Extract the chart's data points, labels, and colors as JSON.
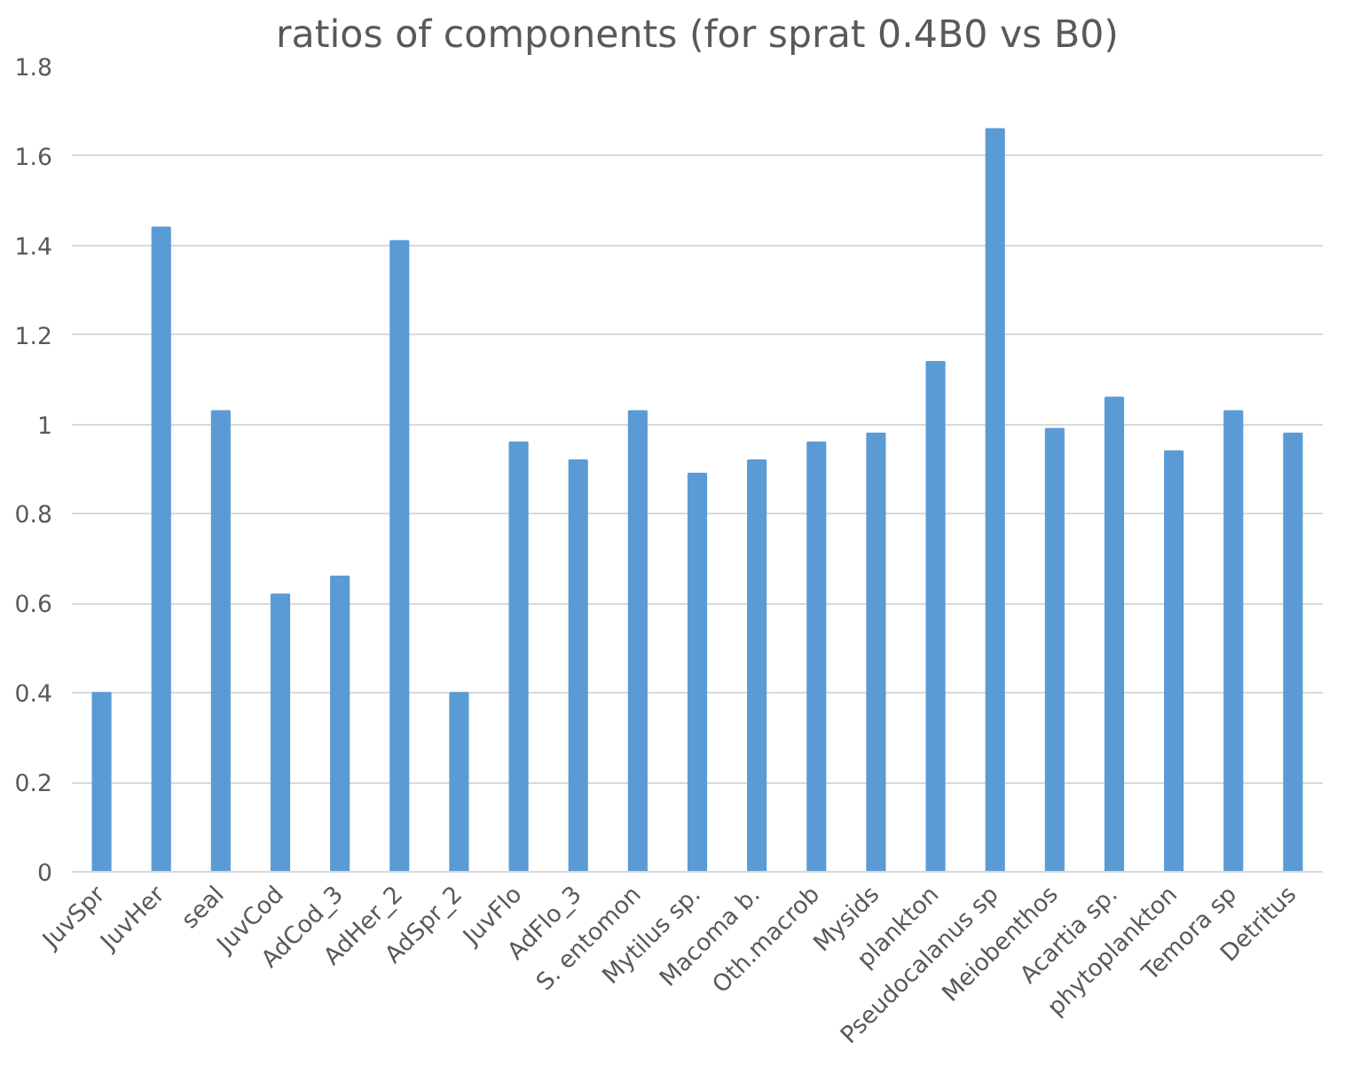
{
  "chart_data": {
    "type": "bar",
    "title": "ratios of components (for sprat 0.4B0 vs B0)",
    "categories": [
      "JuvSpr",
      "JuvHer",
      "seal",
      "JuvCod",
      "AdCod_3",
      "AdHer_2",
      "AdSpr_2",
      "JuvFlo",
      "AdFlo_3",
      "S. entomon",
      "Mytilus sp.",
      "Macoma b.",
      "Oth.macrob",
      "Mysids",
      "plankton",
      "Pseudocalanus sp",
      "Meiobenthos",
      "Acartia sp.",
      "phytoplankton",
      "Temora sp",
      "Detritus"
    ],
    "values": [
      0.4,
      1.44,
      1.03,
      0.62,
      0.66,
      1.41,
      0.4,
      0.96,
      0.92,
      1.03,
      0.89,
      0.92,
      0.96,
      0.98,
      1.14,
      1.66,
      0.99,
      1.06,
      0.94,
      1.03,
      0.98
    ],
    "color": "#5b9bd5",
    "ylim": [
      0,
      1.8
    ],
    "yticks": [
      0,
      {
        "value": 0.2,
        "label": "0.2"
      },
      {
        "value": 0.4,
        "label": "0.4"
      },
      {
        "value": 0.6,
        "label": "0.6"
      },
      {
        "value": 0.8,
        "label": "0.8"
      },
      1,
      {
        "value": 1.2,
        "label": "1.2"
      },
      {
        "value": 1.4,
        "label": "1.4"
      },
      {
        "value": 1.6,
        "label": "1.6"
      },
      {
        "value": 1.8,
        "label": "1.8"
      }
    ],
    "grid": "y"
  }
}
